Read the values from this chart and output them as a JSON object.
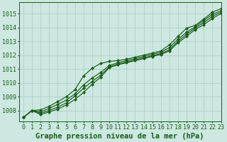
{
  "title": "Graphe pression niveau de la mer (hPa)",
  "background_color": "#cce8e0",
  "grid_color": "#aaccc4",
  "line_color": "#1a5c1a",
  "xlim": [
    -0.5,
    23
  ],
  "ylim": [
    1007.2,
    1015.8
  ],
  "yticks": [
    1008,
    1009,
    1010,
    1011,
    1012,
    1013,
    1014,
    1015
  ],
  "xticks": [
    0,
    1,
    2,
    3,
    4,
    5,
    6,
    7,
    8,
    9,
    10,
    11,
    12,
    13,
    14,
    15,
    16,
    17,
    18,
    19,
    20,
    21,
    22,
    23
  ],
  "series": [
    [
      1007.5,
      1008.0,
      1007.7,
      1007.9,
      1008.1,
      1008.4,
      1008.8,
      1009.3,
      1009.9,
      1010.4,
      1011.1,
      1011.3,
      1011.45,
      1011.6,
      1011.75,
      1011.9,
      1012.05,
      1012.3,
      1012.9,
      1013.35,
      1013.85,
      1014.2,
      1014.65,
      1015.0
    ],
    [
      1007.5,
      1008.0,
      1007.8,
      1008.0,
      1008.25,
      1008.55,
      1009.05,
      1009.6,
      1010.1,
      1010.55,
      1011.15,
      1011.35,
      1011.5,
      1011.65,
      1011.8,
      1011.95,
      1012.1,
      1012.4,
      1013.0,
      1013.5,
      1013.95,
      1014.35,
      1014.8,
      1015.1
    ],
    [
      1007.5,
      1008.0,
      1007.9,
      1008.15,
      1008.45,
      1008.75,
      1009.2,
      1009.85,
      1010.35,
      1010.75,
      1011.25,
      1011.45,
      1011.6,
      1011.75,
      1011.9,
      1012.05,
      1012.2,
      1012.55,
      1013.15,
      1013.65,
      1014.05,
      1014.5,
      1014.95,
      1015.2
    ],
    [
      1007.5,
      1008.0,
      1008.05,
      1008.3,
      1008.65,
      1009.0,
      1009.5,
      1010.5,
      1011.05,
      1011.4,
      1011.55,
      1011.6,
      1011.7,
      1011.85,
      1012.0,
      1012.15,
      1012.3,
      1012.75,
      1013.35,
      1013.95,
      1014.15,
      1014.6,
      1015.1,
      1015.35
    ]
  ],
  "marker": "D",
  "markersize": 2.2,
  "linewidth": 0.85,
  "title_fontsize": 7.5,
  "tick_fontsize": 6.0
}
